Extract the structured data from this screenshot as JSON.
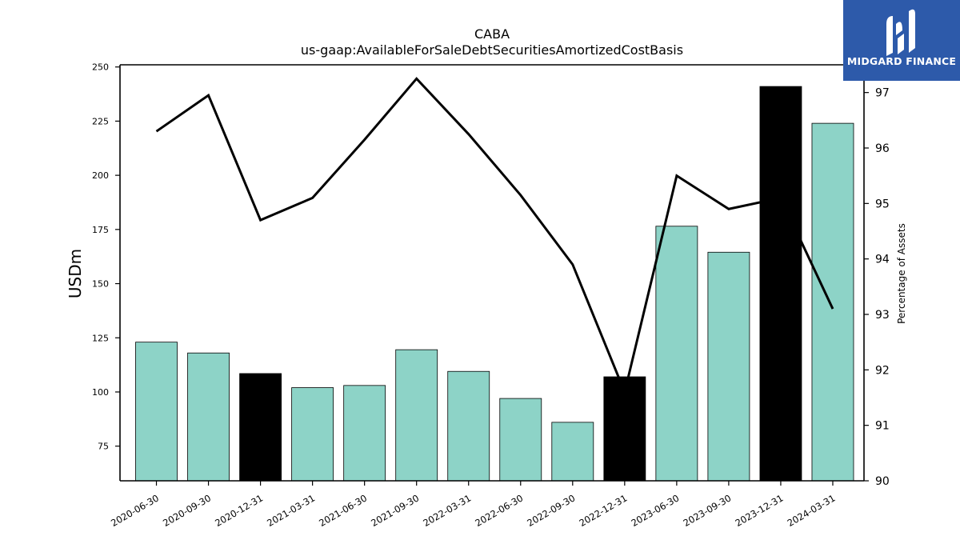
{
  "chart_data": {
    "type": "bar+line",
    "title": "CABA",
    "subtitle": "us-gaap:AvailableForSaleDebtSecuritiesAmortizedCostBasis",
    "ylabel": "USDm",
    "y2label": "Percentage of Assets",
    "categories": [
      "2020-06-30",
      "2020-09-30",
      "2020-12-31",
      "2021-03-31",
      "2021-06-30",
      "2021-09-30",
      "2022-03-31",
      "2022-06-30",
      "2022-09-30",
      "2022-12-31",
      "2023-06-30",
      "2023-09-30",
      "2023-12-31",
      "2024-03-31"
    ],
    "bar_values": [
      123,
      118,
      108.5,
      102,
      103,
      119.5,
      109.5,
      97,
      86,
      107,
      176.5,
      164.5,
      241,
      224
    ],
    "bar_highlight": [
      false,
      false,
      true,
      false,
      false,
      false,
      false,
      false,
      false,
      true,
      false,
      false,
      true,
      false
    ],
    "line_values": [
      96.3,
      96.95,
      94.7,
      95.1,
      96.15,
      97.25,
      96.25,
      95.15,
      93.9,
      91.6,
      95.5,
      94.9,
      95.1,
      93.1
    ],
    "ylim": [
      59,
      251
    ],
    "y_ticks": [
      75,
      100,
      125,
      150,
      175,
      200,
      225,
      250
    ],
    "y2lim": [
      90,
      97.5
    ],
    "y2_ticks": [
      90,
      91,
      92,
      93,
      94,
      95,
      96,
      97
    ],
    "colors": {
      "bar": "#8dd3c7",
      "bar_highlight": "#000000",
      "line": "#000000"
    }
  },
  "logo": {
    "text": "MIDGARD FINANCE"
  }
}
